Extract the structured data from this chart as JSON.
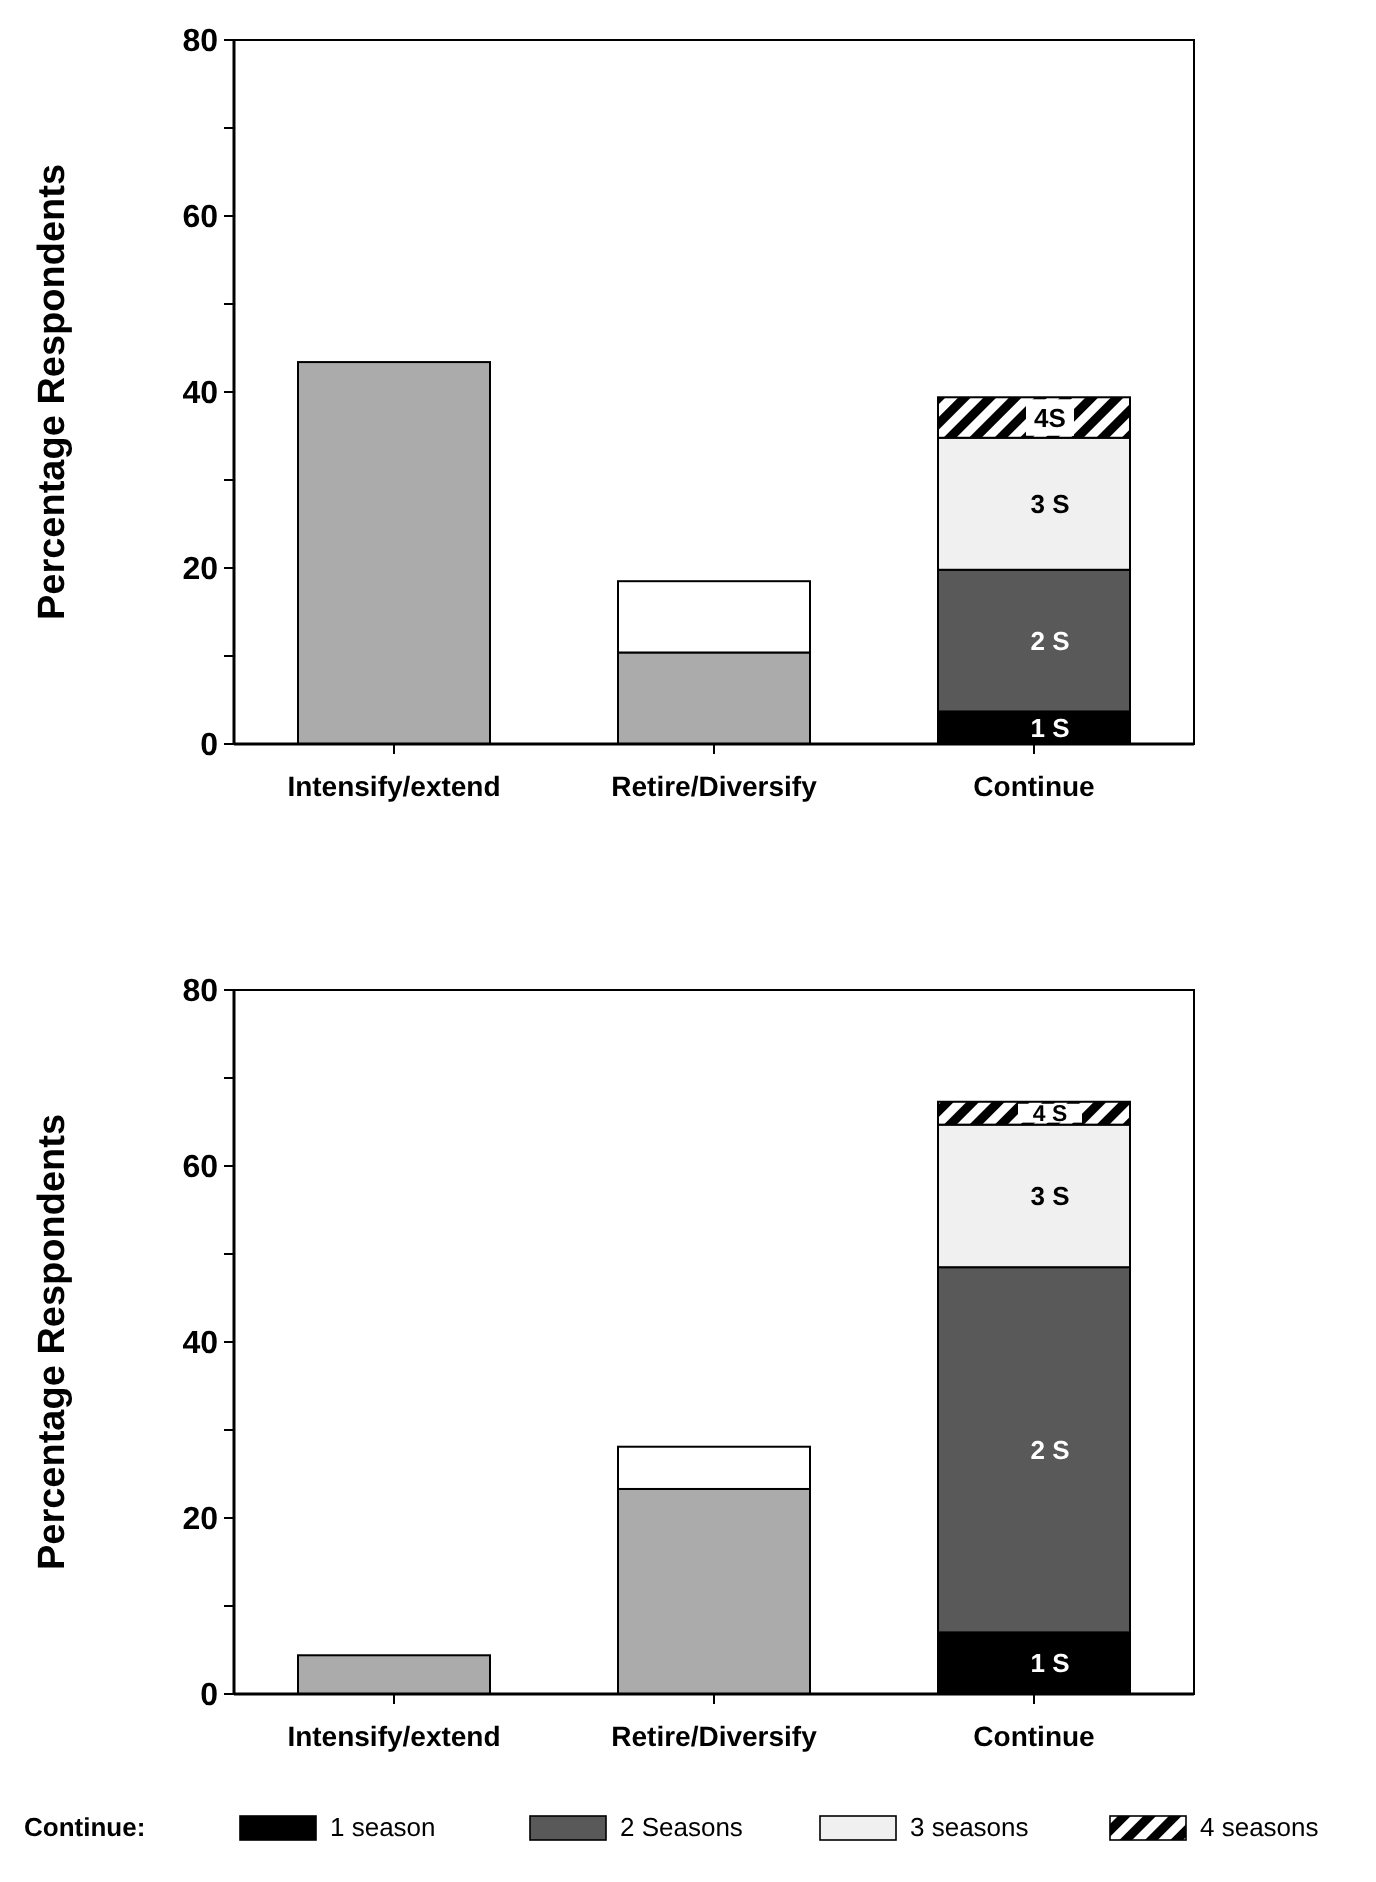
{
  "chart_data": [
    {
      "type": "bar",
      "stacked": true,
      "ylabel": "Percentage  Respondents",
      "categories": [
        "Intensify/extend",
        "Retire/Diversify",
        "Continue"
      ],
      "ylim": [
        0,
        80
      ],
      "yticks": [
        0,
        {
          "value": 10,
          "label": null
        },
        20,
        {
          "value": 30,
          "label": null
        },
        40,
        {
          "value": 50,
          "label": null
        },
        60,
        {
          "value": 70,
          "label": null
        },
        80
      ],
      "grid": false,
      "legend": false,
      "series": [
        {
          "color": "#ababab",
          "values": [
            43.4,
            10.4,
            null
          ]
        },
        {
          "color": "#ffffff",
          "values": [
            null,
            8.1,
            null
          ]
        },
        {
          "color": "#000000",
          "values": [
            null,
            null,
            3.7
          ]
        },
        {
          "color": "#595959",
          "values": [
            null,
            null,
            16.1
          ]
        },
        {
          "color": "#f0f0f0",
          "values": [
            null,
            null,
            15.0
          ]
        },
        {
          "color": "#000000",
          "values": [
            null,
            null,
            4.6
          ]
        }
      ],
      "annotations": [
        "1 S",
        "2 S",
        "3 S",
        "4S"
      ]
    },
    {
      "type": "bar",
      "stacked": true,
      "ylabel": "Percentage Respondents",
      "categories": [
        "Intensify/extend",
        "Retire/Diversify",
        "Continue"
      ],
      "ylim": [
        0,
        80
      ],
      "yticks": [
        0,
        {
          "value": 10,
          "label": null
        },
        20,
        {
          "value": 30,
          "label": null
        },
        40,
        {
          "value": 50,
          "label": null
        },
        60,
        {
          "value": 70,
          "label": null
        },
        80
      ],
      "grid": false,
      "legend": "bottom",
      "legend_title": "Continue:",
      "series": [
        {
          "color": "#ababab",
          "values": [
            4.4,
            23.3,
            null
          ]
        },
        {
          "color": "#ffffff",
          "values": [
            null,
            4.8,
            null
          ]
        },
        {
          "name": "1 season",
          "color": "#000000",
          "values": [
            null,
            null,
            7.0
          ]
        },
        {
          "name": "2 Seasons",
          "color": "#595959",
          "values": [
            null,
            null,
            41.5
          ]
        },
        {
          "name": "3 seasons",
          "color": "#f0f0f0",
          "values": [
            null,
            null,
            16.2
          ]
        },
        {
          "name": "4 seasons",
          "color": "#000000",
          "values": [
            null,
            null,
            2.6
          ]
        }
      ],
      "annotations": [
        "1 S",
        "2 S",
        "3 S",
        "4 S"
      ]
    }
  ]
}
